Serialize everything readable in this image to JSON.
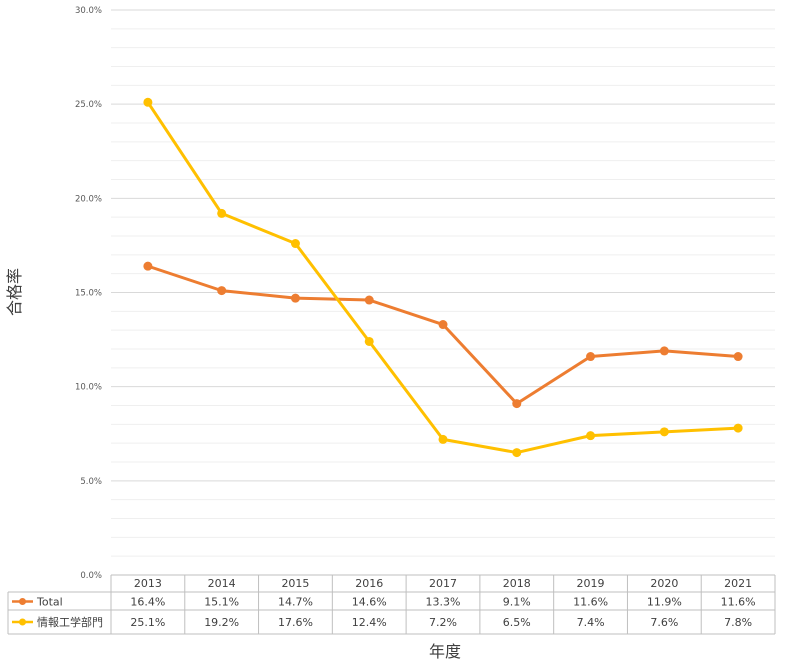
{
  "chart_data": {
    "type": "line",
    "title": "",
    "xlabel": "年度",
    "ylabel": "合格率",
    "ylim": [
      0,
      30
    ],
    "y_ticks": [
      "0.0%",
      "5.0%",
      "10.0%",
      "15.0%",
      "20.0%",
      "25.0%",
      "30.0%"
    ],
    "grid": true,
    "legend": "data-table",
    "categories": [
      "2013",
      "2014",
      "2015",
      "2016",
      "2017",
      "2018",
      "2019",
      "2020",
      "2021"
    ],
    "series": [
      {
        "name": "Total",
        "color": "#ED7D31",
        "values": [
          16.4,
          15.1,
          14.7,
          14.6,
          13.3,
          9.1,
          11.6,
          11.9,
          11.6
        ],
        "labels": [
          "16.4%",
          "15.1%",
          "14.7%",
          "14.6%",
          "13.3%",
          "9.1%",
          "11.6%",
          "11.9%",
          "11.6%"
        ]
      },
      {
        "name": "情報工学部門",
        "color": "#FFC000",
        "values": [
          25.1,
          19.2,
          17.6,
          12.4,
          7.2,
          6.5,
          7.4,
          7.6,
          7.8
        ],
        "labels": [
          "25.1%",
          "19.2%",
          "17.6%",
          "12.4%",
          "7.2%",
          "6.5%",
          "7.4%",
          "7.6%",
          "7.8%"
        ]
      }
    ]
  }
}
